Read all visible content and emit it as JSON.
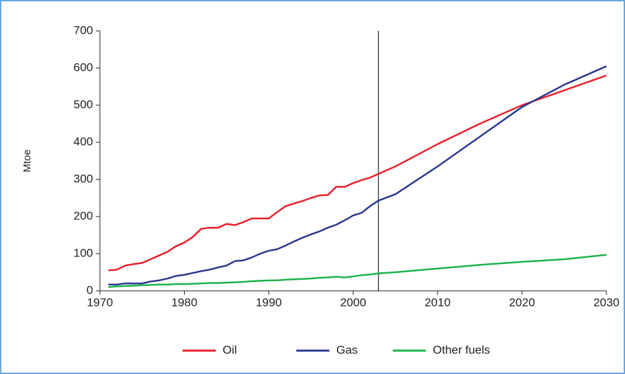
{
  "chart_data": {
    "type": "line",
    "ylabel": "Mtoe",
    "x": [
      1971,
      1972,
      1973,
      1974,
      1975,
      1976,
      1977,
      1978,
      1979,
      1980,
      1981,
      1982,
      1983,
      1984,
      1985,
      1986,
      1987,
      1988,
      1989,
      1990,
      1991,
      1992,
      1993,
      1994,
      1995,
      1996,
      1997,
      1998,
      1999,
      2000,
      2001,
      2002,
      2003,
      2005,
      2010,
      2015,
      2020,
      2025,
      2030
    ],
    "series": [
      {
        "name": "Oil",
        "color": "#e8202a",
        "values": [
          55,
          57,
          68,
          72,
          75,
          85,
          95,
          105,
          120,
          130,
          145,
          167,
          170,
          170,
          180,
          177,
          185,
          195,
          195,
          195,
          212,
          228,
          235,
          242,
          250,
          257,
          258,
          280,
          280,
          290,
          298,
          305,
          315,
          335,
          395,
          450,
          500,
          540,
          580
        ]
      },
      {
        "name": "Gas",
        "color": "#2b3990",
        "values": [
          17,
          17,
          20,
          20,
          20,
          25,
          28,
          33,
          40,
          43,
          48,
          53,
          57,
          63,
          68,
          80,
          82,
          90,
          100,
          108,
          112,
          122,
          133,
          143,
          152,
          160,
          170,
          178,
          190,
          203,
          210,
          228,
          243,
          260,
          335,
          415,
          495,
          555,
          605
        ]
      },
      {
        "name": "Other fuels",
        "color": "#1db34a",
        "values": [
          10,
          12,
          13,
          14,
          15,
          16,
          17,
          17,
          18,
          18,
          19,
          20,
          21,
          21,
          22,
          23,
          24,
          26,
          27,
          28,
          28,
          30,
          31,
          32,
          33,
          35,
          36,
          38,
          36,
          39,
          42,
          44,
          47,
          50,
          60,
          70,
          78,
          85,
          97
        ]
      }
    ],
    "xlim": [
      1970,
      2030
    ],
    "xticks": [
      1970,
      1980,
      1990,
      2000,
      2010,
      2020,
      2030
    ],
    "ylim": [
      0,
      700
    ],
    "yticks": [
      0,
      100,
      200,
      300,
      400,
      500,
      600,
      700
    ],
    "vline_x": 2003,
    "legend": "bottom"
  }
}
